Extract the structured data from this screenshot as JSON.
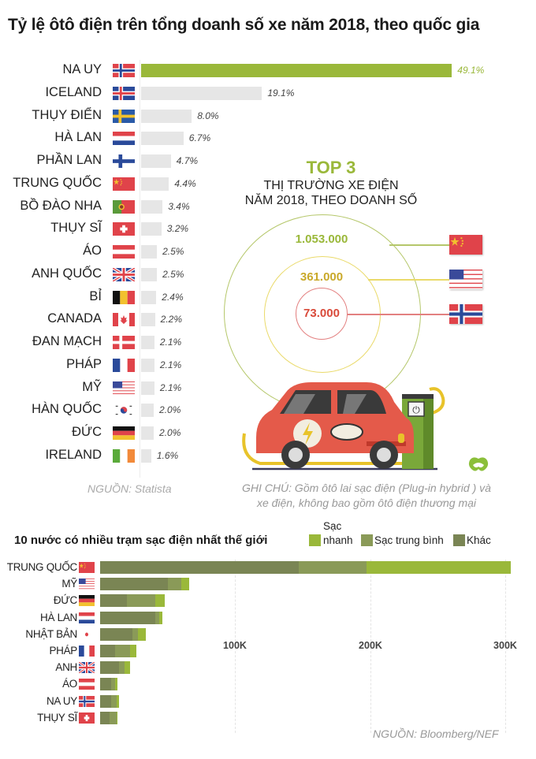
{
  "title": "Tỷ lệ ôtô điện trên tổng doanh số xe năm 2018, theo quốc gia",
  "colors": {
    "highlight": "#9ab83a",
    "bar_default": "#e6e6e6",
    "fast": "#9ab83a",
    "medium": "#8a9a58",
    "other": "#7a8554"
  },
  "chart_data": [
    {
      "type": "bar",
      "orientation": "horizontal",
      "title": "Tỷ lệ ôtô điện trên tổng doanh số xe năm 2018, theo quốc gia",
      "categories": [
        "NA UY",
        "ICELAND",
        "THỤY ĐIỂN",
        "HÀ LAN",
        "PHẦN LAN",
        "TRUNG QUỐC",
        "BỒ ĐÀO NHA",
        "THỤY SĨ",
        "ÁO",
        "ANH QUỐC",
        "BỈ",
        "CANADA",
        "ĐAN MẠCH",
        "PHÁP",
        "MỸ",
        "HÀN QUỐC",
        "ĐỨC",
        "IRELAND"
      ],
      "values": [
        49.1,
        19.1,
        8.0,
        6.7,
        4.7,
        4.4,
        3.4,
        3.2,
        2.5,
        2.5,
        2.4,
        2.2,
        2.1,
        2.1,
        2.1,
        2.0,
        2.0,
        1.6
      ],
      "unit": "%",
      "highlighted": "NA UY",
      "source": "NGUỒN: Statista"
    },
    {
      "type": "bubble",
      "title": "TOP 3",
      "subtitle": "THỊ TRƯỜNG XE ĐIỆN NĂM 2018, THEO DOANH SỐ",
      "categories": [
        "Trung Quốc",
        "Mỹ",
        "Na Uy"
      ],
      "values": [
        1053000,
        361000,
        73000
      ],
      "note": "GHI CHÚ: Gồm ôtô lai sạc điện (Plug-in hybrid ) và xe điện, không bao gồm ôtô điện thương mại"
    },
    {
      "type": "bar",
      "orientation": "horizontal",
      "stacked": true,
      "title": "10 nước có nhiều trạm sạc điện nhất thế giới",
      "categories": [
        "TRUNG QUỐC",
        "MỸ",
        "ĐỨC",
        "HÀ LAN",
        "NHẬT BẢN",
        "PHÁP",
        "ANH",
        "ÁO",
        "NA UY",
        "THỤY SĨ"
      ],
      "series": [
        {
          "name": "Khác",
          "values": [
            147,
            50,
            20,
            41,
            24,
            11,
            14,
            8,
            8,
            7
          ]
        },
        {
          "name": "Sạc trung bình",
          "values": [
            50,
            10,
            21,
            3,
            4,
            11,
            4,
            3,
            4,
            5
          ]
        },
        {
          "name": "Sạc nhanh",
          "values": [
            107,
            6,
            7,
            2,
            6,
            5,
            4,
            2,
            2,
            1
          ]
        }
      ],
      "unit": "nghìn trạm",
      "xticks": [
        "100K",
        "200K",
        "300K"
      ],
      "xlim": [
        0,
        310
      ],
      "source": "NGUỒN: Bloomberg/NEF"
    }
  ],
  "top_chart": {
    "rows": [
      {
        "label": "NA UY",
        "value": "49.1%",
        "pct": 49.1,
        "flag": "norway"
      },
      {
        "label": "ICELAND",
        "value": "19.1%",
        "pct": 19.1,
        "flag": "iceland"
      },
      {
        "label": "THỤY ĐIỂN",
        "value": "8.0%",
        "pct": 8.0,
        "flag": "sweden"
      },
      {
        "label": "HÀ LAN",
        "value": "6.7%",
        "pct": 6.7,
        "flag": "netherlands"
      },
      {
        "label": "PHẦN LAN",
        "value": "4.7%",
        "pct": 4.7,
        "flag": "finland"
      },
      {
        "label": "TRUNG QUỐC",
        "value": "4.4%",
        "pct": 4.4,
        "flag": "china"
      },
      {
        "label": "BỒ ĐÀO NHA",
        "value": "3.4%",
        "pct": 3.4,
        "flag": "portugal"
      },
      {
        "label": "THỤY SĨ",
        "value": "3.2%",
        "pct": 3.2,
        "flag": "switzerland"
      },
      {
        "label": "ÁO",
        "value": "2.5%",
        "pct": 2.5,
        "flag": "austria"
      },
      {
        "label": "ANH QUỐC",
        "value": "2.5%",
        "pct": 2.5,
        "flag": "uk"
      },
      {
        "label": "BỈ",
        "value": "2.4%",
        "pct": 2.4,
        "flag": "belgium"
      },
      {
        "label": "CANADA",
        "value": "2.2%",
        "pct": 2.2,
        "flag": "canada"
      },
      {
        "label": "ĐAN MẠCH",
        "value": "2.1%",
        "pct": 2.1,
        "flag": "denmark"
      },
      {
        "label": "PHÁP",
        "value": "2.1%",
        "pct": 2.1,
        "flag": "france"
      },
      {
        "label": "MỸ",
        "value": "2.1%",
        "pct": 2.1,
        "flag": "usa"
      },
      {
        "label": "HÀN QUỐC",
        "value": "2.0%",
        "pct": 2.0,
        "flag": "korea"
      },
      {
        "label": "ĐỨC",
        "value": "2.0%",
        "pct": 2.0,
        "flag": "germany"
      },
      {
        "label": "IRELAND",
        "value": "1.6%",
        "pct": 1.6,
        "flag": "ireland"
      }
    ],
    "source": "NGUỒN: Statista"
  },
  "top3": {
    "title": "TOP 3",
    "subtitle_line1": "THỊ TRƯỜNG XE ĐIỆN",
    "subtitle_line2": "NĂM 2018, THEO DOANH SỐ",
    "values": [
      "1.053.000",
      "361.000",
      "73.000"
    ],
    "note_line1": "GHI CHÚ: Gồm ôtô lai sạc điện (Plug-in hybrid ) và",
    "note_line2": "xe điện, không bao gồm ôtô điện thương mại"
  },
  "bottom_chart": {
    "title": "10 nước có nhiều trạm sạc điện nhất thế giới",
    "legend": {
      "fast_line1": "Sạc",
      "fast_line2": "nhanh",
      "medium": "Sạc trung bình",
      "other": "Khác"
    },
    "ticks": [
      "100K",
      "200K",
      "300K"
    ],
    "rows": [
      {
        "label": "TRUNG QUỐC",
        "flag": "china"
      },
      {
        "label": "MỸ",
        "flag": "usa"
      },
      {
        "label": "ĐỨC",
        "flag": "germany"
      },
      {
        "label": "HÀ LAN",
        "flag": "netherlands"
      },
      {
        "label": "NHẬT BẢN",
        "flag": "japan"
      },
      {
        "label": "PHÁP",
        "flag": "france"
      },
      {
        "label": "ANH",
        "flag": "uk"
      },
      {
        "label": "ÁO",
        "flag": "austria"
      },
      {
        "label": "NA UY",
        "flag": "norway"
      },
      {
        "label": "THỤY SĨ",
        "flag": "switzerland"
      }
    ],
    "source": "NGUỒN: Bloomberg/NEF"
  }
}
